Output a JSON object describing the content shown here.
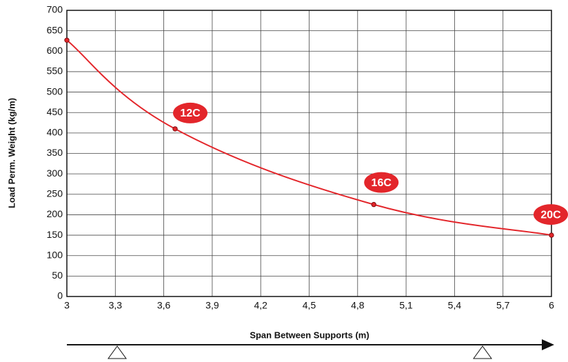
{
  "chart_data": {
    "type": "line",
    "x_label": "Span Between Supports (m)",
    "y_label": "Load Perm. Weight (kg/m)",
    "x": [
      3,
      3.67,
      4.9,
      6
    ],
    "series": [
      {
        "color": "#e3262b",
        "values": [
          627,
          410,
          225,
          150
        ]
      }
    ],
    "annotations": [
      "12C",
      "16C",
      "20C"
    ],
    "xlim": [
      3,
      6
    ],
    "xticks": [
      3,
      {
        "value": 3.3,
        "label": "3,3"
      },
      {
        "value": 3.6,
        "label": "3,6"
      },
      {
        "value": 3.9,
        "label": "3,9"
      },
      {
        "value": 4.2,
        "label": "4,2"
      },
      {
        "value": 4.5,
        "label": "4,5"
      },
      {
        "value": 4.8,
        "label": "4,8"
      },
      {
        "value": 5.1,
        "label": "5,1"
      },
      {
        "value": 5.4,
        "label": "5,4"
      },
      {
        "value": 5.7,
        "label": "5,7"
      },
      6
    ],
    "ylim": [
      0,
      700
    ],
    "yticks": [
      0,
      50,
      100,
      150,
      200,
      250,
      300,
      350,
      400,
      450,
      500,
      550,
      600,
      650,
      700
    ],
    "grid": true
  }
}
